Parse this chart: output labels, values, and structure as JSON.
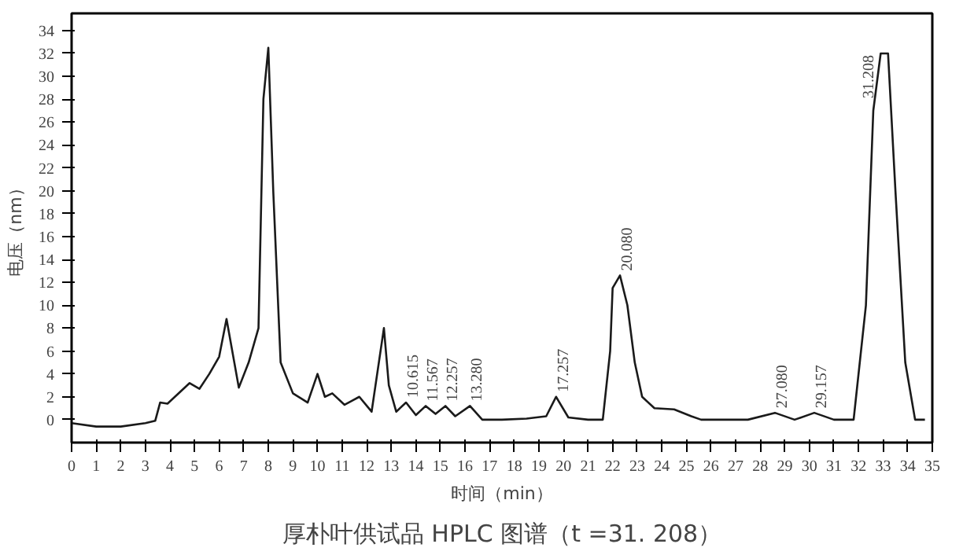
{
  "chart_data": {
    "type": "line",
    "title": "厚朴叶供试品 HPLC 图谱（t =31. 208）",
    "xlabel": "时间（min）",
    "ylabel": "电压（nm）",
    "x": [
      0,
      1,
      2,
      3,
      3.4,
      3.6,
      3.9,
      4.2,
      4.8,
      5.2,
      5.6,
      6.0,
      6.3,
      6.8,
      7.2,
      7.6,
      7.8,
      8.0,
      8.2,
      8.5,
      9.0,
      9.6,
      10.0,
      10.3,
      10.6,
      11.1,
      11.7,
      12.2,
      12.7,
      12.9,
      13.2,
      13.6,
      14.0,
      14.4,
      14.8,
      15.2,
      15.6,
      16.2,
      16.7,
      17.5,
      18.5,
      19.3,
      19.7,
      20.2,
      21.0,
      21.6,
      21.9,
      22.0,
      22.3,
      22.6,
      22.9,
      23.2,
      23.7,
      24.5,
      25.2,
      25.6,
      26.5,
      27.5,
      28.6,
      29.4,
      30.2,
      31.0,
      31.8,
      32.3,
      32.6,
      32.9,
      33.2,
      33.5,
      33.9,
      34.3,
      34.7
    ],
    "values": [
      -0.3,
      -0.6,
      -0.6,
      -0.3,
      -0.1,
      1.5,
      1.4,
      2,
      3.2,
      2.7,
      4,
      5.5,
      8.8,
      2.8,
      5,
      8,
      28,
      32.5,
      20,
      5,
      2.3,
      1.5,
      4,
      2,
      2.3,
      1.3,
      2,
      0.7,
      8,
      3,
      0.7,
      1.5,
      0.4,
      1.2,
      0.5,
      1.2,
      0.3,
      1.2,
      0,
      0,
      0.1,
      0.3,
      2,
      0.2,
      0,
      0,
      6,
      11.5,
      12.6,
      10,
      5,
      2,
      1,
      0.9,
      0.3,
      0,
      0,
      0,
      0.6,
      0,
      0.6,
      0,
      0,
      10,
      27,
      32,
      32,
      20,
      5,
      0,
      0
    ],
    "color": "#1a1a1a",
    "xlim": [
      0,
      35
    ],
    "ylim": [
      -2,
      35.5
    ],
    "xticks": [
      0,
      1,
      2,
      3,
      4,
      5,
      6,
      7,
      8,
      9,
      10,
      11,
      12,
      13,
      14,
      15,
      16,
      17,
      18,
      19,
      20,
      21,
      22,
      23,
      24,
      25,
      26,
      27,
      28,
      29,
      30,
      31,
      32,
      33,
      34,
      35
    ],
    "yticks": [
      0,
      2,
      4,
      6,
      8,
      10,
      12,
      14,
      16,
      18,
      20,
      22,
      24,
      26,
      28,
      30,
      32,
      34
    ],
    "annotations": [
      {
        "text": "10.615",
        "x": 13.6,
        "y": 1.5
      },
      {
        "text": "11.567",
        "x": 14.4,
        "y": 1.2
      },
      {
        "text": "12.257",
        "x": 15.2,
        "y": 1.2
      },
      {
        "text": "13.280",
        "x": 16.2,
        "y": 1.2
      },
      {
        "text": "17.257",
        "x": 19.7,
        "y": 2
      },
      {
        "text": "20.080",
        "x": 22.3,
        "y": 12.6
      },
      {
        "text": "27.080",
        "x": 28.6,
        "y": 0.6
      },
      {
        "text": "29.157",
        "x": 30.2,
        "y": 0.6
      },
      {
        "text": "31.208",
        "x": 32.9,
        "y": 32
      }
    ],
    "grid": false,
    "marker": "none",
    "line_style": "solid"
  }
}
